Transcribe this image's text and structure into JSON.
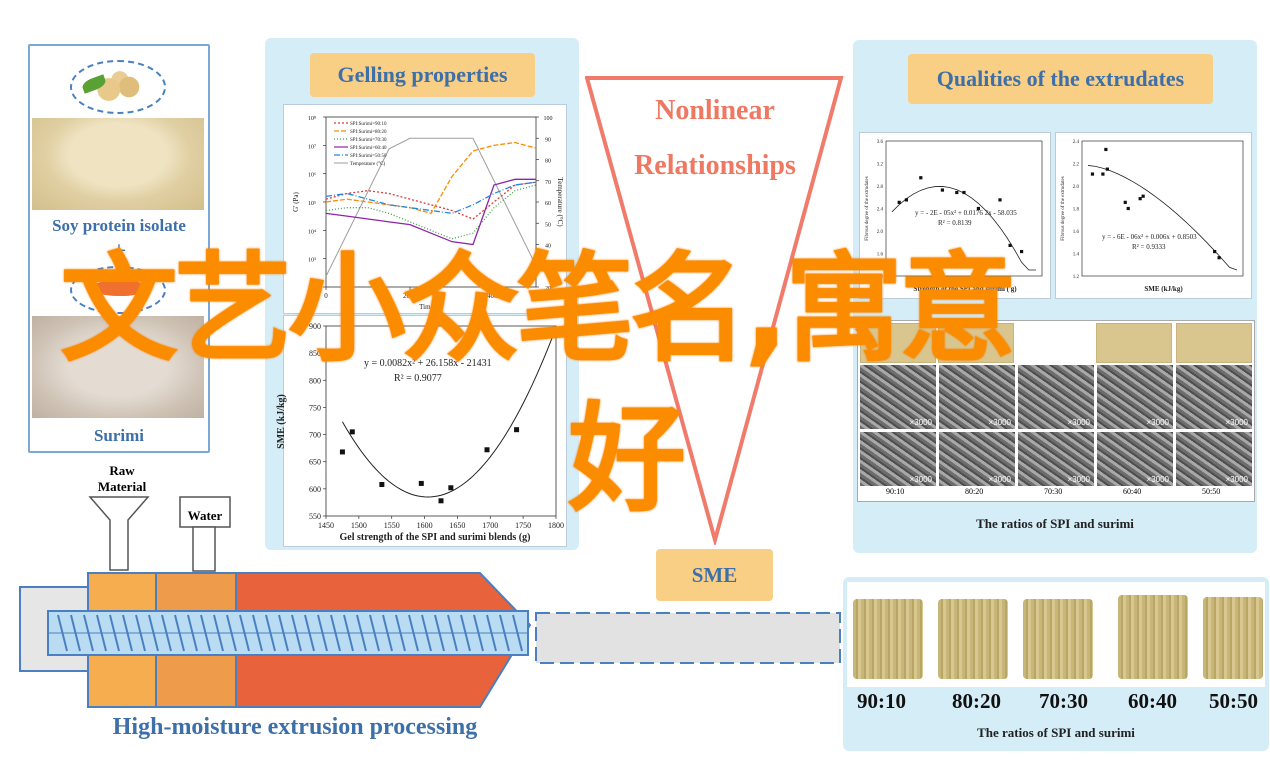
{
  "left_panel": {
    "soy_label": "Soy protein isolate",
    "plus": "+",
    "surimi_label": "Surimi"
  },
  "gelling": {
    "title": "Gelling properties",
    "chart_data": {
      "type": "line",
      "x": [
        0,
        500,
        1000,
        1500,
        2000,
        2500,
        3000,
        3500,
        4000,
        4500,
        5000
      ],
      "xlim": [
        0,
        5000
      ],
      "ylim_left_log10": [
        2,
        8
      ],
      "ylim_right": [
        20,
        100
      ],
      "xlabel": "Time (s)",
      "ylabel": "G' (Pa)",
      "ylabel_right": "Temperature (°C)",
      "x_ticks": [
        "0",
        "2000",
        "4000"
      ],
      "y_ticks_right": [
        "20",
        "30",
        "40",
        "50",
        "60",
        "70",
        "80",
        "90",
        "100"
      ],
      "series": [
        {
          "name": "SPI:Surimi=90:10",
          "color": "#e53935",
          "log_values": [
            5.1,
            5.3,
            5.4,
            5.3,
            5.1,
            4.9,
            4.7,
            4.4,
            5.0,
            5.6,
            5.7
          ]
        },
        {
          "name": "SPI:Surimi=80:20",
          "color": "#fb8c00",
          "log_values": [
            5.0,
            5.1,
            5.0,
            4.9,
            4.8,
            4.6,
            5.9,
            6.8,
            7.0,
            7.1,
            6.9
          ]
        },
        {
          "name": "SPI:Surimi=70:30",
          "color": "#43a047",
          "log_values": [
            4.7,
            4.8,
            4.8,
            4.6,
            4.3,
            4.0,
            3.7,
            3.9,
            4.8,
            5.4,
            5.6
          ]
        },
        {
          "name": "SPI:Surimi=60:40",
          "color": "#8e24aa",
          "log_values": [
            4.6,
            4.5,
            4.4,
            4.3,
            4.2,
            3.9,
            3.6,
            3.5,
            5.6,
            5.8,
            5.8
          ]
        },
        {
          "name": "SPI:Surimi=50:50",
          "color": "#1e88e5",
          "log_values": [
            5.2,
            5.3,
            5.1,
            4.9,
            4.8,
            4.7,
            4.6,
            4.9,
            5.3,
            5.6,
            5.7
          ]
        }
      ],
      "temperature": {
        "name": "Temperature (°C)",
        "color": "#9e9e9e",
        "values": [
          25,
          45,
          65,
          85,
          90,
          90,
          90,
          90,
          70,
          50,
          30
        ]
      }
    },
    "sme_chart": {
      "type": "scatter",
      "equation": "y = 0.0082x² + 26.158x - 21431",
      "r2": "R² = 0.9077",
      "xlabel": "Gel strength of the SPI and surimi blends (g)",
      "ylabel": "SME (kJ/kg)",
      "xlim": [
        1450,
        1800
      ],
      "ylim": [
        550,
        900
      ],
      "x_ticks": [
        "1450",
        "1500",
        "1550",
        "1600",
        "1650",
        "1700",
        "1750",
        "1800"
      ],
      "y_ticks": [
        "550",
        "600",
        "650",
        "700",
        "750",
        "800",
        "850",
        "900"
      ],
      "points": [
        [
          1475,
          668
        ],
        [
          1490,
          705
        ],
        [
          1535,
          608
        ],
        [
          1595,
          610
        ],
        [
          1625,
          578
        ],
        [
          1640,
          602
        ],
        [
          1695,
          672
        ],
        [
          1740,
          709
        ],
        [
          1790,
          890
        ]
      ]
    }
  },
  "nonlinear": {
    "line1": "Nonlinear",
    "line2": "Relationships"
  },
  "qualities": {
    "title": "Qualities of the extrudates",
    "chart_left": {
      "equation": "y = - 2E - 05x² + 0.0176 2x - 58.035",
      "r2": "R² = 0.8139",
      "ylabel": "Fibrous degree of the extrudates",
      "xlabel": "Strength of the SPI and surimi ( g)",
      "y_ticks": [
        "1.2",
        "1.6",
        "2.0",
        "2.4",
        "2.8",
        "3.2",
        "3.6"
      ],
      "points": [
        [
          0.05,
          0.55
        ],
        [
          0.1,
          0.57
        ],
        [
          0.2,
          0.75
        ],
        [
          0.35,
          0.65
        ],
        [
          0.45,
          0.63
        ],
        [
          0.5,
          0.63
        ],
        [
          0.6,
          0.5
        ],
        [
          0.75,
          0.57
        ],
        [
          0.82,
          0.2
        ],
        [
          0.9,
          0.15
        ]
      ]
    },
    "chart_right": {
      "equation": "y = - 6E - 06x² + 0.006x + 0.8503",
      "r2": "R² = 0.9333",
      "ylabel": "Fibrous degree of the extrudates",
      "xlabel": "SME (kJ/kg)",
      "y_ticks": [
        "1.2",
        "1.4",
        "1.6",
        "1.8",
        "2.0",
        "2.2",
        "2.4"
      ],
      "points": [
        [
          0.03,
          0.78
        ],
        [
          0.1,
          0.78
        ],
        [
          0.12,
          0.98
        ],
        [
          0.13,
          0.82
        ],
        [
          0.25,
          0.55
        ],
        [
          0.27,
          0.5
        ],
        [
          0.35,
          0.58
        ],
        [
          0.37,
          0.6
        ],
        [
          0.85,
          0.15
        ],
        [
          0.88,
          0.1
        ]
      ]
    },
    "sem_magnification": "×3000",
    "ratio_labels_small": [
      "90:10",
      "80:20",
      "70:30",
      "60:40",
      "50:50"
    ],
    "caption": "The ratios of SPI and surimi"
  },
  "sme_box": "SME",
  "extruder": {
    "raw_material": "Raw\nMaterial",
    "water": "Water",
    "title": "High-moisture extrusion processing"
  },
  "samples": {
    "labels": [
      "90:10",
      "80:20",
      "70:30",
      "60:40",
      "50:50"
    ],
    "caption": "The ratios of SPI and surimi"
  },
  "overlay": {
    "line1": "文艺小众笔名,寓意",
    "line2": "好"
  },
  "colors": {
    "panel_bg": "#d4edf7",
    "title_box": "#f9cf86",
    "title_text": "#3d6fa8",
    "blue_line": "#4a7fc1",
    "overlay": "#fb8c00",
    "barrel_orange": "#f5ad4f",
    "barrel_red": "#e8623c"
  }
}
